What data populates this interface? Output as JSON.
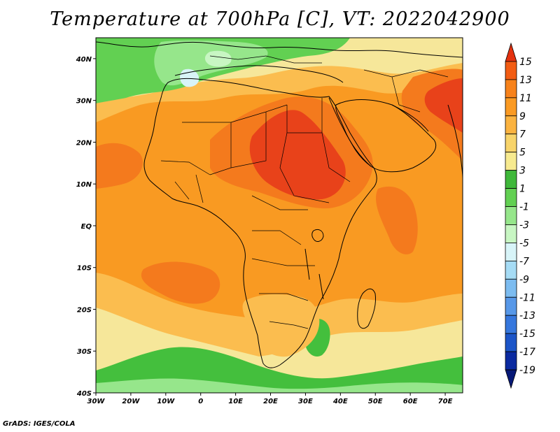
{
  "title": "Temperature at 700hPa [C], VT: 2022042900",
  "credit": "GrADS: IGES/COLA",
  "map": {
    "lon_range": [
      -30,
      75
    ],
    "lat_range": [
      -40,
      45
    ],
    "lon_ticks": [
      "30W",
      "20W",
      "10W",
      "0",
      "10E",
      "20E",
      "30E",
      "40E",
      "50E",
      "60E",
      "70E"
    ],
    "lat_ticks": [
      "40N",
      "30N",
      "20N",
      "10N",
      "EQ",
      "10S",
      "20S",
      "30S",
      "40S"
    ]
  },
  "colorbar": {
    "labels": [
      "15",
      "13",
      "11",
      "9",
      "7",
      "5",
      "3",
      "1",
      "-1",
      "-3",
      "-5",
      "-7",
      "-9",
      "-11",
      "-13",
      "-15",
      "-17",
      "-19"
    ],
    "colors": [
      "#e4310f",
      "#f25c13",
      "#f7821b",
      "#fa9a23",
      "#fbb340",
      "#f8d46a",
      "#f7ea8f",
      "#3fb83a",
      "#62d052",
      "#96e68b",
      "#c8f6c3",
      "#d8f4f8",
      "#a6dcf5",
      "#7cbcf0",
      "#5798e8",
      "#3677dd",
      "#1c55c8",
      "#0b2aa0",
      "#071977"
    ]
  },
  "layers": [
    {
      "name": "warm-core",
      "color": "#e8421a"
    },
    {
      "name": "warm",
      "color": "#f47a1d"
    },
    {
      "name": "mid",
      "color": "#f99a22"
    },
    {
      "name": "cool-yellow",
      "color": "#fbbd4f"
    },
    {
      "name": "pale",
      "color": "#f6e79a"
    },
    {
      "name": "green",
      "color": "#44bf3d"
    },
    {
      "name": "light-green",
      "color": "#7ddc6c"
    },
    {
      "name": "cyan",
      "color": "#d0f4ee"
    }
  ]
}
